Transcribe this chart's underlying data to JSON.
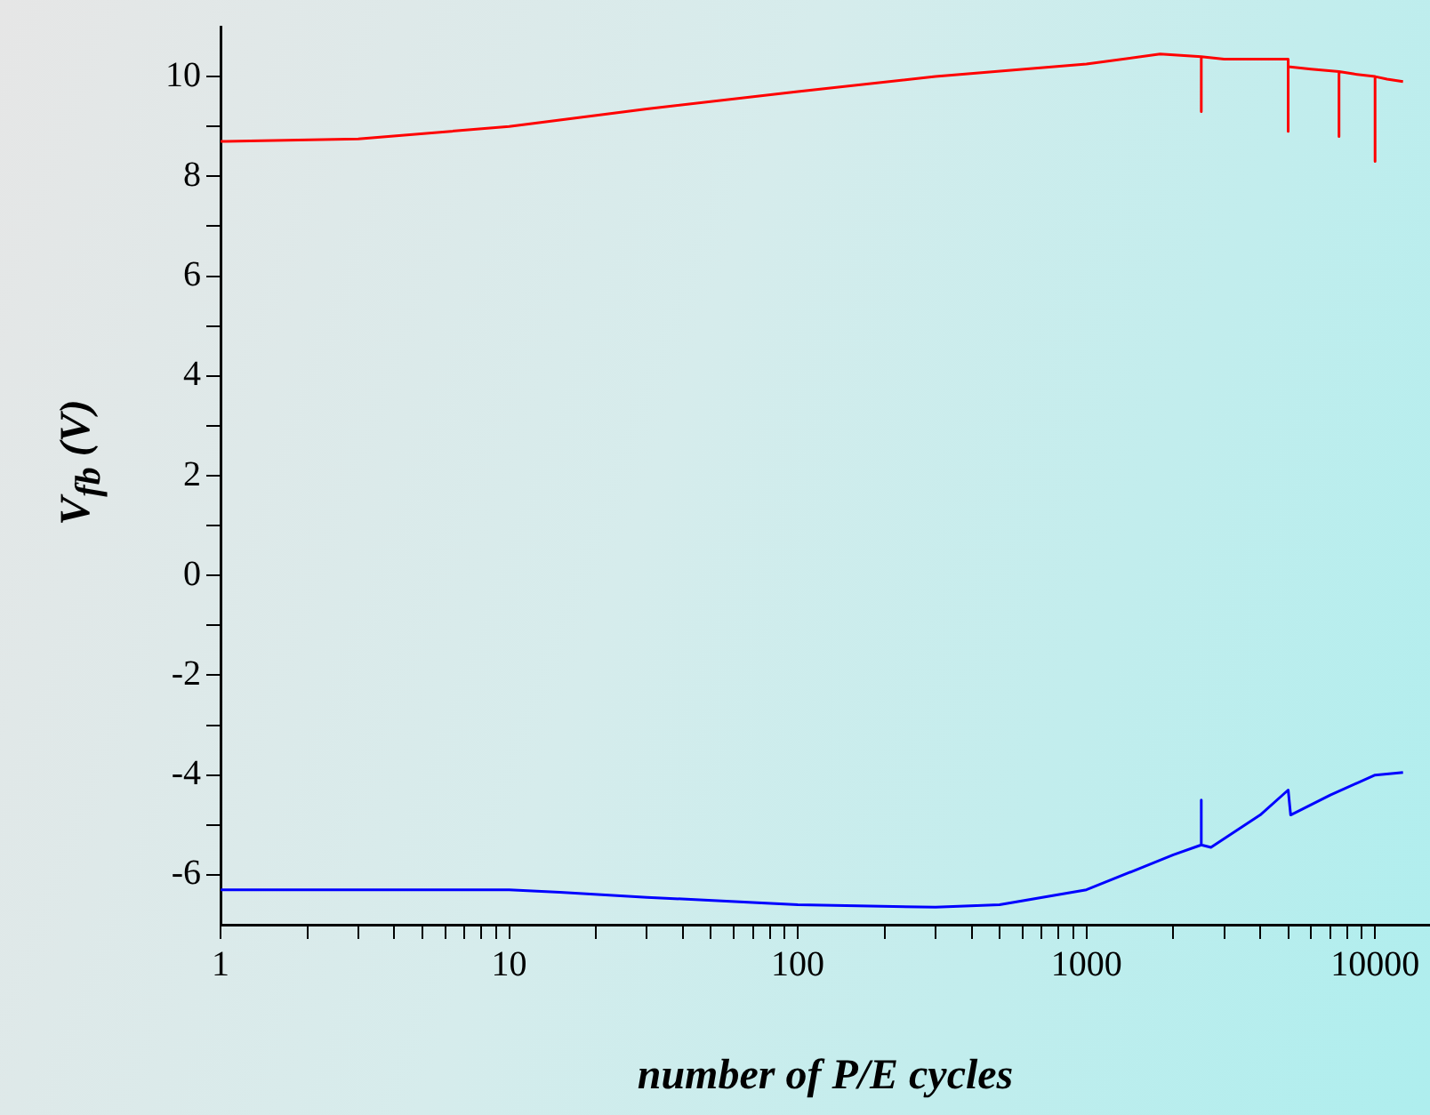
{
  "chart_data": {
    "type": "line",
    "xlabel": "number of P/E cycles",
    "ylabel": "V$_{fb}$ (V)",
    "log": "x",
    "grid": false,
    "legend": false,
    "marker": "none",
    "line_style": "solid",
    "xlim": [
      1,
      15500
    ],
    "xticks": [
      1,
      {
        "value": 2,
        "label": null
      },
      {
        "value": 3,
        "label": null
      },
      {
        "value": 4,
        "label": null
      },
      {
        "value": 5,
        "label": null
      },
      {
        "value": 6,
        "label": null
      },
      {
        "value": 7,
        "label": null
      },
      {
        "value": 8,
        "label": null
      },
      {
        "value": 9,
        "label": null
      },
      10,
      {
        "value": 20,
        "label": null
      },
      {
        "value": 30,
        "label": null
      },
      {
        "value": 40,
        "label": null
      },
      {
        "value": 50,
        "label": null
      },
      {
        "value": 60,
        "label": null
      },
      {
        "value": 70,
        "label": null
      },
      {
        "value": 80,
        "label": null
      },
      {
        "value": 90,
        "label": null
      },
      100,
      {
        "value": 200,
        "label": null
      },
      {
        "value": 300,
        "label": null
      },
      {
        "value": 400,
        "label": null
      },
      {
        "value": 500,
        "label": null
      },
      {
        "value": 600,
        "label": null
      },
      {
        "value": 700,
        "label": null
      },
      {
        "value": 800,
        "label": null
      },
      {
        "value": 900,
        "label": null
      },
      1000,
      {
        "value": 2000,
        "label": null
      },
      {
        "value": 3000,
        "label": null
      },
      {
        "value": 4000,
        "label": null
      },
      {
        "value": 5000,
        "label": null
      },
      {
        "value": 6000,
        "label": null
      },
      {
        "value": 7000,
        "label": null
      },
      {
        "value": 8000,
        "label": null
      },
      {
        "value": 9000,
        "label": null
      },
      10000
    ],
    "ylim": [
      -7,
      11
    ],
    "yticks": [
      -6,
      {
        "value": -5,
        "label": null
      },
      -4,
      {
        "value": -3,
        "label": null
      },
      -2,
      {
        "value": -1,
        "label": null
      },
      0,
      {
        "value": 1,
        "label": null
      },
      2,
      {
        "value": 3,
        "label": null
      },
      4,
      {
        "value": 5,
        "label": null
      },
      6,
      {
        "value": 7,
        "label": null
      },
      8,
      {
        "value": 9,
        "label": null
      },
      10
    ],
    "series": [
      {
        "color": "#ff0000",
        "x": [
          1,
          3,
          10,
          30,
          100,
          300,
          1000,
          1800,
          2500,
          2500,
          2500,
          3000,
          5000,
          5000,
          5000,
          6000,
          7500,
          7500,
          7500,
          8500,
          10000,
          10000,
          10000,
          11000,
          12500
        ],
        "values": [
          8.7,
          8.75,
          9.0,
          9.35,
          9.7,
          10.0,
          10.25,
          10.45,
          10.4,
          9.3,
          10.4,
          10.35,
          10.35,
          8.9,
          10.2,
          10.15,
          10.1,
          8.8,
          10.1,
          10.05,
          10.0,
          8.3,
          10.0,
          9.95,
          9.9
        ]
      },
      {
        "color": "#0000ff",
        "x": [
          1,
          10,
          15,
          30,
          100,
          300,
          500,
          1000,
          2000,
          2500,
          2500,
          2500,
          2700,
          4000,
          5000,
          5100,
          7000,
          10000,
          12500
        ],
        "values": [
          -6.3,
          -6.3,
          -6.35,
          -6.45,
          -6.6,
          -6.65,
          -6.6,
          -6.3,
          -5.6,
          -5.4,
          -4.5,
          -5.4,
          -5.45,
          -4.8,
          -4.3,
          -4.8,
          -4.4,
          -4.0,
          -3.95
        ]
      }
    ]
  }
}
